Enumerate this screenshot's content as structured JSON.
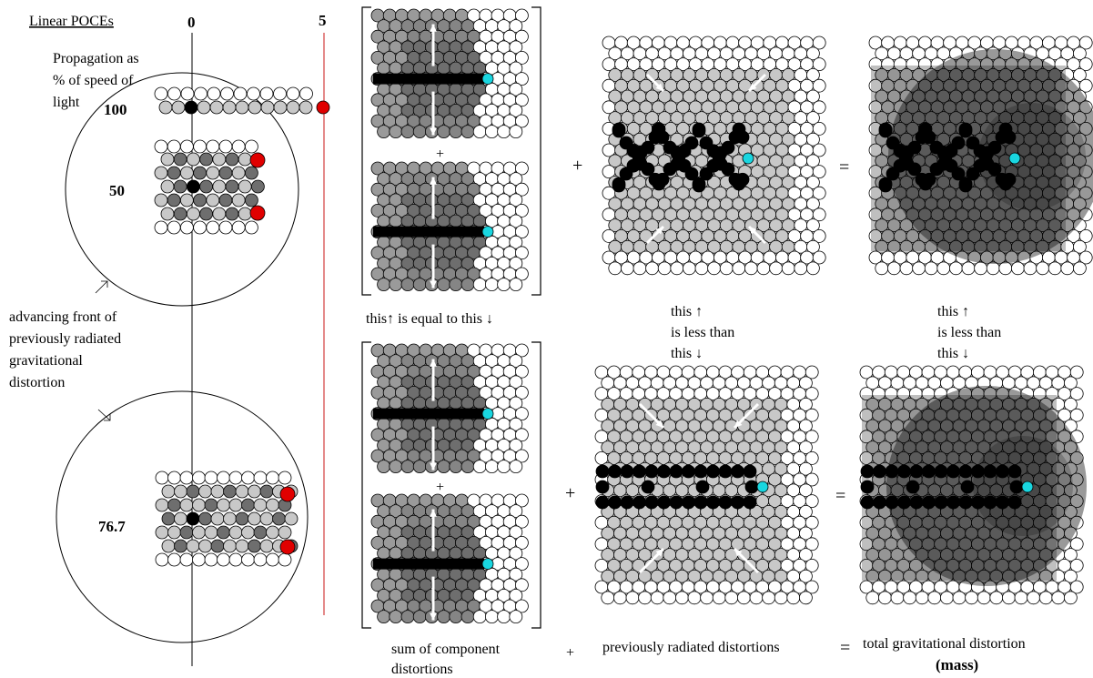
{
  "left_panel": {
    "heading": "Linear POCEs",
    "subtitle_lines": [
      "Propagation as",
      "% of speed of",
      "light"
    ],
    "axis_zero": "0",
    "axis_five": "5",
    "speeds": [
      "100",
      "50",
      "76.7"
    ],
    "front_label_lines": [
      "advancing front of",
      "previously radiated",
      "gravitational",
      "distortion"
    ]
  },
  "captions": {
    "equal": "this↑ is equal to this ↓",
    "mid_this_up": "this ↑",
    "mid_less": "is less than",
    "mid_this_down": "this ↓",
    "right_this_up": "this ↑",
    "right_less": "is less than",
    "right_this_down": "this ↓",
    "bottom_sum_1": "sum of component",
    "bottom_sum_2": "distortions",
    "bottom_plus": "+",
    "bottom_prev": "previously radiated distortions",
    "bottom_eq": "=",
    "bottom_total": "total gravitational distortion",
    "bottom_mass": "(mass)"
  },
  "operators": {
    "plus_top": "+",
    "plus_mid_top": "+",
    "eq_top": "=",
    "plus_bottom": "+",
    "plus_mid_bottom": "+",
    "eq_bottom": "="
  },
  "colors": {
    "red_front": "#e00000",
    "cyan": "#19d6e0",
    "dark_gray": "#6e6e6e",
    "mid_gray": "#9a9a9a",
    "light_gray": "#c8c8c8",
    "black": "#000000",
    "red_line": "#d23c3c"
  }
}
